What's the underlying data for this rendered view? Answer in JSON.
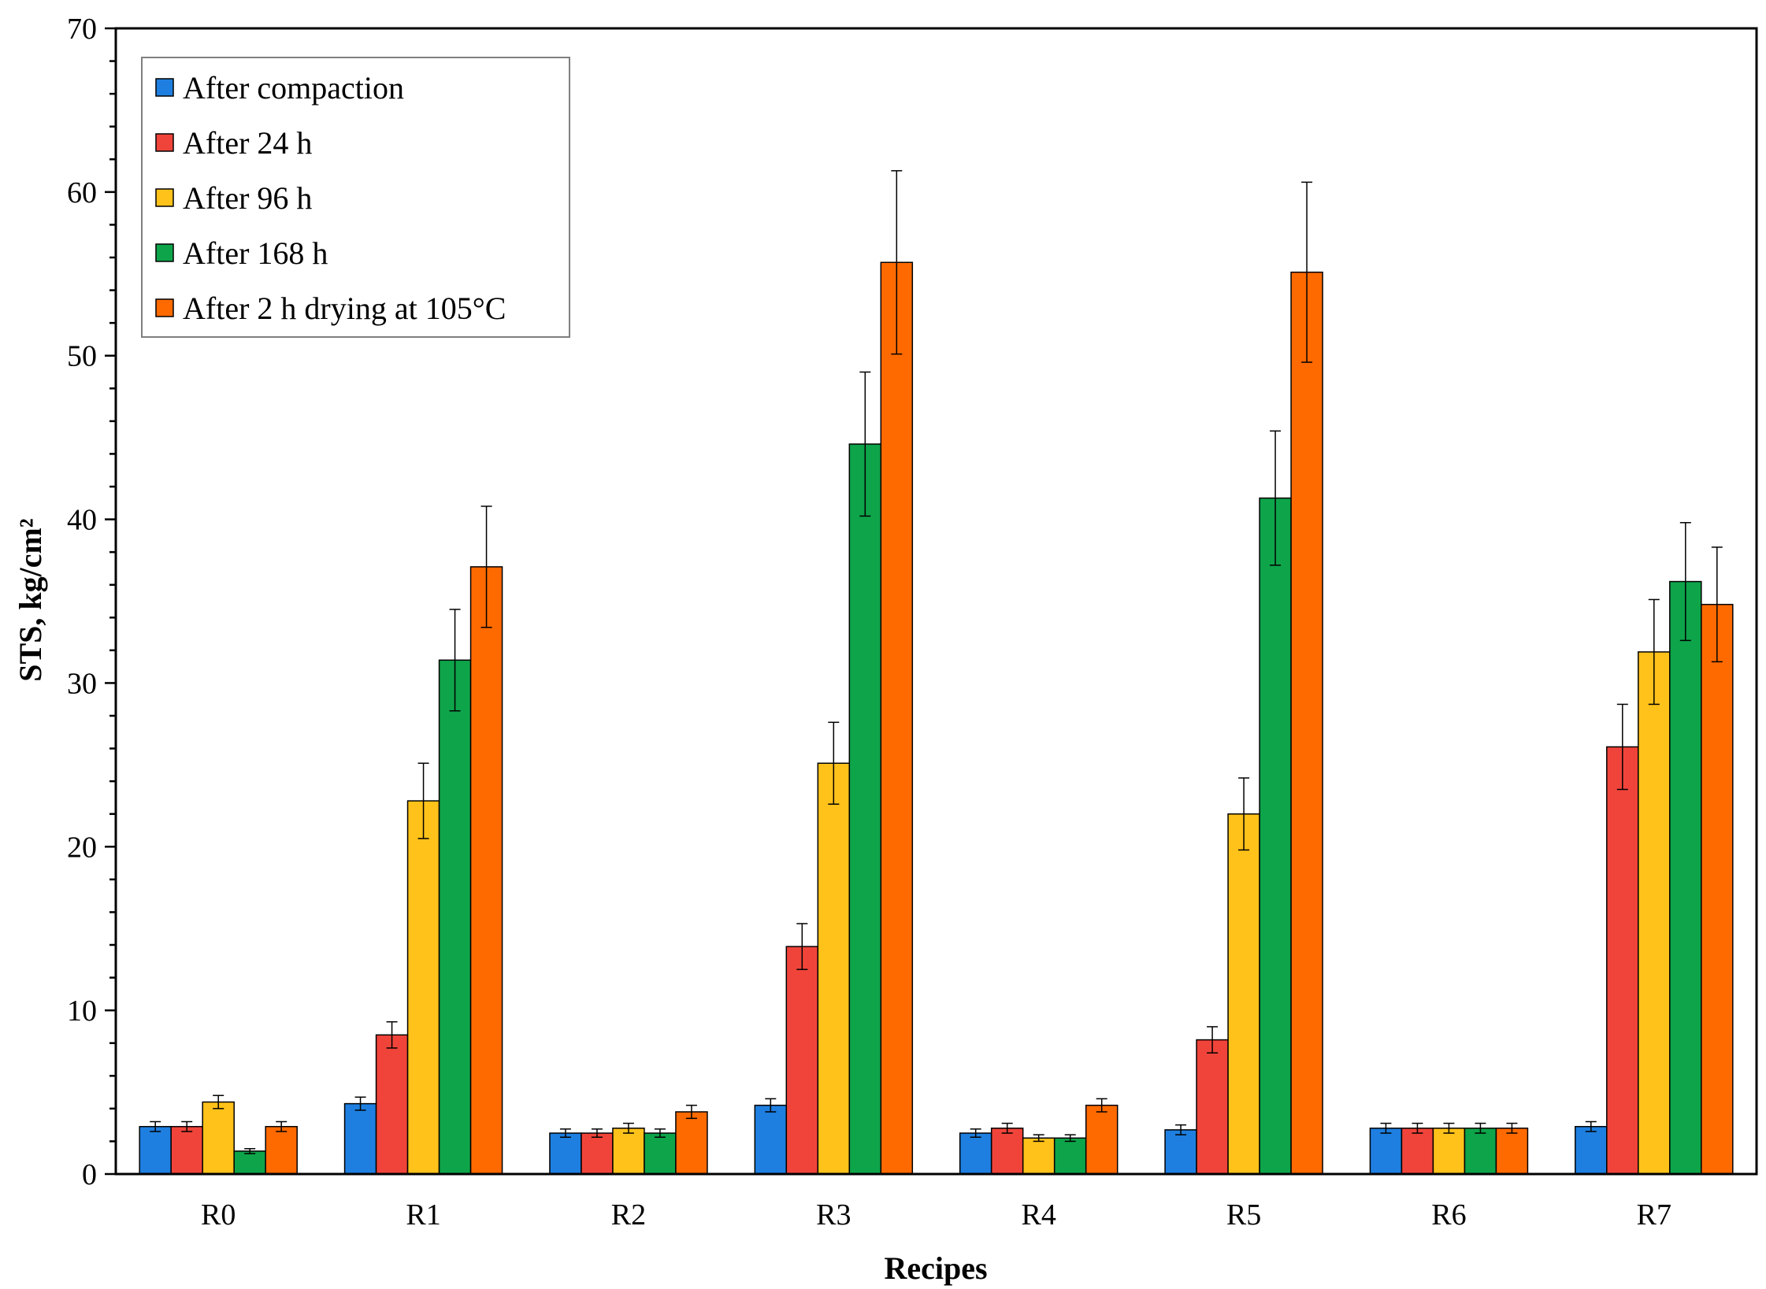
{
  "chart_data": {
    "type": "bar",
    "title": "",
    "xlabel": "Recipes",
    "ylabel": "STS, kg/cm²",
    "ylim": [
      0,
      70
    ],
    "yticks": [
      0,
      10,
      20,
      30,
      40,
      50,
      60,
      70
    ],
    "grid": false,
    "legend_position": "top-left",
    "categories": [
      "R0",
      "R1",
      "R2",
      "R3",
      "R4",
      "R5",
      "R6",
      "R7"
    ],
    "series": [
      {
        "name": "After compaction",
        "color": "#1e7fe0",
        "values": [
          2.9,
          4.3,
          2.5,
          4.2,
          2.5,
          2.7,
          2.8,
          2.9
        ],
        "errors": [
          0.3,
          0.4,
          0.25,
          0.4,
          0.25,
          0.3,
          0.3,
          0.3
        ]
      },
      {
        "name": "After 24 h",
        "color": "#f0443a",
        "values": [
          2.9,
          8.5,
          2.5,
          13.9,
          2.8,
          8.2,
          2.8,
          26.1
        ],
        "errors": [
          0.3,
          0.8,
          0.25,
          1.4,
          0.3,
          0.8,
          0.3,
          2.6
        ]
      },
      {
        "name": "After 96 h",
        "color": "#ffc21a",
        "values": [
          4.4,
          22.8,
          2.8,
          25.1,
          2.2,
          22.0,
          2.8,
          31.9
        ],
        "errors": [
          0.4,
          2.3,
          0.3,
          2.5,
          0.2,
          2.2,
          0.3,
          3.2
        ]
      },
      {
        "name": "After 168 h",
        "color": "#0ea44a",
        "values": [
          1.4,
          31.4,
          2.5,
          44.6,
          2.2,
          41.3,
          2.8,
          36.2
        ],
        "errors": [
          0.15,
          3.1,
          0.25,
          4.4,
          0.2,
          4.1,
          0.3,
          3.6
        ]
      },
      {
        "name": "After 2 h drying at 105°C",
        "color": "#ff6a00",
        "values": [
          2.9,
          37.1,
          3.8,
          55.7,
          4.2,
          55.1,
          2.8,
          34.8
        ],
        "errors": [
          0.3,
          3.7,
          0.4,
          5.6,
          0.4,
          5.5,
          0.3,
          3.5
        ]
      }
    ]
  }
}
